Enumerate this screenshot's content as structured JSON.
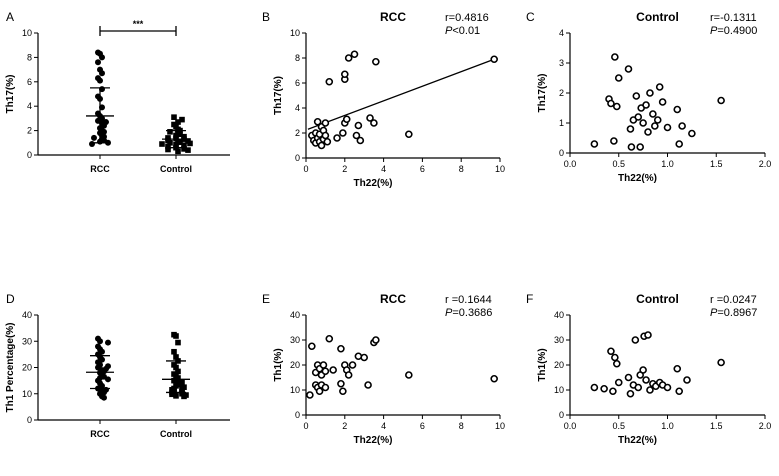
{
  "chart_data": [
    {
      "id": "A",
      "type": "scatter",
      "panel_letter": "A",
      "title": "",
      "ylabel": "Th17(%)",
      "xlabel": "",
      "ylim": [
        0,
        10
      ],
      "yticks": [
        0,
        2,
        4,
        6,
        8,
        10
      ],
      "categories": [
        "RCC",
        "Control"
      ],
      "significance": "***",
      "groups": [
        {
          "name": "RCC",
          "marker": "circle",
          "values": [
            8.4,
            8.3,
            8.0,
            7.6,
            7.0,
            6.7,
            6.3,
            6.1,
            5.4,
            4.8,
            4.6,
            3.9,
            3.4,
            3.2,
            3.0,
            2.8,
            2.7,
            2.6,
            2.4,
            2.2,
            2.0,
            1.9,
            1.8,
            1.6,
            1.5,
            1.4,
            1.3,
            1.2,
            1.1,
            1.0,
            0.9
          ],
          "mean": 3.2,
          "sd_upper": 5.5,
          "sd_lower": 1.0
        },
        {
          "name": "Control",
          "marker": "square",
          "values": [
            3.1,
            2.9,
            2.7,
            2.5,
            2.3,
            2.1,
            2.0,
            1.9,
            1.8,
            1.7,
            1.6,
            1.5,
            1.4,
            1.35,
            1.3,
            1.2,
            1.15,
            1.1,
            1.05,
            1.0,
            0.95,
            0.9,
            0.85,
            0.8,
            0.7,
            0.6,
            0.5,
            0.45,
            0.4,
            0.3
          ],
          "mean": 1.3,
          "sd_upper": 2.0,
          "sd_lower": 0.6
        }
      ]
    },
    {
      "id": "B",
      "type": "scatter",
      "panel_letter": "B",
      "title": "RCC",
      "stat_r": "r=0.4816",
      "stat_p_label": "P",
      "stat_p_value": "<0.01",
      "ylabel": "Th17(%)",
      "xlabel": "Th22(%)",
      "xlim": [
        0,
        10
      ],
      "ylim": [
        0,
        10
      ],
      "xticks": [
        0,
        2,
        4,
        6,
        8,
        10
      ],
      "yticks": [
        0,
        2,
        4,
        6,
        8,
        10
      ],
      "regression": {
        "x": [
          0.1,
          9.7
        ],
        "y": [
          2.3,
          7.9
        ]
      },
      "points": [
        [
          0.3,
          1.8
        ],
        [
          0.4,
          1.4
        ],
        [
          0.5,
          2.0
        ],
        [
          0.5,
          1.2
        ],
        [
          0.6,
          2.9
        ],
        [
          0.6,
          1.6
        ],
        [
          0.7,
          1.9
        ],
        [
          0.7,
          1.3
        ],
        [
          0.8,
          2.5
        ],
        [
          0.8,
          1.0
        ],
        [
          0.9,
          2.2
        ],
        [
          0.9,
          1.5
        ],
        [
          1.0,
          2.8
        ],
        [
          1.0,
          1.8
        ],
        [
          1.1,
          1.3
        ],
        [
          1.2,
          6.1
        ],
        [
          1.6,
          1.6
        ],
        [
          1.9,
          2.0
        ],
        [
          2.0,
          2.8
        ],
        [
          2.0,
          6.3
        ],
        [
          2.0,
          6.7
        ],
        [
          2.1,
          3.1
        ],
        [
          2.2,
          8.0
        ],
        [
          2.5,
          8.3
        ],
        [
          2.6,
          1.8
        ],
        [
          2.7,
          2.6
        ],
        [
          2.8,
          1.4
        ],
        [
          3.3,
          3.2
        ],
        [
          3.5,
          2.8
        ],
        [
          3.6,
          7.7
        ],
        [
          5.3,
          1.9
        ],
        [
          9.7,
          7.9
        ]
      ]
    },
    {
      "id": "C",
      "type": "scatter",
      "panel_letter": "C",
      "title": "Control",
      "stat_r": "r=-0.1311",
      "stat_p_label": "P",
      "stat_p_value": "=0.4900",
      "ylabel": "Th17(%)",
      "xlabel": "Th22(%)",
      "xlim": [
        0,
        2.0
      ],
      "ylim": [
        0,
        4
      ],
      "xticks": [
        0.0,
        0.5,
        1.0,
        1.5,
        2.0
      ],
      "yticks": [
        0,
        1,
        2,
        3,
        4
      ],
      "points": [
        [
          0.25,
          0.3
        ],
        [
          0.4,
          1.8
        ],
        [
          0.42,
          1.65
        ],
        [
          0.45,
          0.4
        ],
        [
          0.46,
          3.2
        ],
        [
          0.48,
          1.55
        ],
        [
          0.5,
          2.5
        ],
        [
          0.6,
          2.8
        ],
        [
          0.62,
          0.8
        ],
        [
          0.63,
          0.2
        ],
        [
          0.65,
          1.1
        ],
        [
          0.68,
          1.9
        ],
        [
          0.7,
          1.2
        ],
        [
          0.72,
          0.2
        ],
        [
          0.73,
          1.5
        ],
        [
          0.75,
          1.0
        ],
        [
          0.78,
          1.6
        ],
        [
          0.8,
          0.7
        ],
        [
          0.82,
          2.0
        ],
        [
          0.85,
          1.3
        ],
        [
          0.87,
          0.9
        ],
        [
          0.9,
          1.1
        ],
        [
          0.92,
          2.2
        ],
        [
          0.95,
          1.7
        ],
        [
          1.0,
          0.85
        ],
        [
          1.1,
          1.45
        ],
        [
          1.12,
          0.3
        ],
        [
          1.15,
          0.9
        ],
        [
          1.25,
          0.65
        ],
        [
          1.55,
          1.75
        ]
      ]
    },
    {
      "id": "D",
      "type": "scatter",
      "panel_letter": "D",
      "title": "",
      "ylabel": "Th1 Percentage(%)",
      "xlabel": "",
      "ylim": [
        0,
        40
      ],
      "yticks": [
        0,
        10,
        20,
        30,
        40
      ],
      "categories": [
        "RCC",
        "Control"
      ],
      "groups": [
        {
          "name": "RCC",
          "marker": "circle",
          "values": [
            31,
            30,
            29.5,
            28,
            27,
            26,
            25,
            24,
            23,
            22,
            21,
            20.5,
            20,
            19.5,
            19,
            18.5,
            18,
            17,
            16.5,
            16,
            15.5,
            15,
            14,
            13,
            12,
            11.5,
            11,
            10.5,
            10,
            9,
            8.5
          ],
          "mean": 18.2,
          "sd_upper": 24.5,
          "sd_lower": 12.0
        },
        {
          "name": "Control",
          "marker": "square",
          "values": [
            32.5,
            32,
            29.5,
            26,
            24,
            22.5,
            21,
            20,
            18.5,
            17.5,
            16.5,
            16,
            15,
            14.5,
            14,
            13.5,
            13,
            12.5,
            12,
            11.8,
            11.5,
            11,
            10.8,
            10.5,
            10.2,
            10,
            9.8,
            9.5,
            9.2,
            9
          ],
          "mean": 15.5,
          "sd_upper": 22.5,
          "sd_lower": 10.5
        }
      ]
    },
    {
      "id": "E",
      "type": "scatter",
      "panel_letter": "E",
      "title": "RCC",
      "stat_r": "r =0.1644",
      "stat_p_label": "P",
      "stat_p_value": "=0.3686",
      "ylabel": "Th1(%)",
      "xlabel": "Th22(%)",
      "xlim": [
        0,
        10
      ],
      "ylim": [
        0,
        40
      ],
      "xticks": [
        0,
        2,
        4,
        6,
        8,
        10
      ],
      "yticks": [
        0,
        10,
        20,
        30,
        40
      ],
      "points": [
        [
          0.2,
          8
        ],
        [
          0.3,
          27.5
        ],
        [
          0.5,
          17
        ],
        [
          0.5,
          12
        ],
        [
          0.6,
          20
        ],
        [
          0.6,
          11
        ],
        [
          0.7,
          18.5
        ],
        [
          0.7,
          9.5
        ],
        [
          0.8,
          12
        ],
        [
          0.8,
          16
        ],
        [
          0.9,
          20
        ],
        [
          1.0,
          17.5
        ],
        [
          1.0,
          11
        ],
        [
          1.2,
          30.5
        ],
        [
          1.4,
          18
        ],
        [
          1.8,
          26.5
        ],
        [
          1.8,
          12.5
        ],
        [
          1.9,
          9.5
        ],
        [
          2.0,
          20
        ],
        [
          2.1,
          18
        ],
        [
          2.2,
          16
        ],
        [
          2.4,
          20
        ],
        [
          2.7,
          23.5
        ],
        [
          3.0,
          23
        ],
        [
          3.2,
          12
        ],
        [
          3.5,
          29
        ],
        [
          3.6,
          30
        ],
        [
          5.3,
          16
        ],
        [
          9.7,
          14.5
        ]
      ]
    },
    {
      "id": "F",
      "type": "scatter",
      "panel_letter": "F",
      "title": "Control",
      "stat_r": "r =0.0247",
      "stat_p_label": "P",
      "stat_p_value": "=0.8967",
      "ylabel": "Th1(%)",
      "xlabel": "Th22(%)",
      "xlim": [
        0,
        2.0
      ],
      "ylim": [
        0,
        40
      ],
      "xticks": [
        0.0,
        0.5,
        1.0,
        1.5,
        2.0
      ],
      "yticks": [
        0,
        10,
        20,
        30,
        40
      ],
      "points": [
        [
          0.25,
          11
        ],
        [
          0.35,
          10.5
        ],
        [
          0.42,
          25.5
        ],
        [
          0.44,
          9.5
        ],
        [
          0.46,
          23
        ],
        [
          0.48,
          20.5
        ],
        [
          0.5,
          13
        ],
        [
          0.6,
          15
        ],
        [
          0.62,
          8.5
        ],
        [
          0.65,
          12
        ],
        [
          0.67,
          30
        ],
        [
          0.7,
          11
        ],
        [
          0.72,
          16
        ],
        [
          0.75,
          18
        ],
        [
          0.76,
          31.5
        ],
        [
          0.78,
          14
        ],
        [
          0.8,
          32
        ],
        [
          0.82,
          10
        ],
        [
          0.85,
          12.5
        ],
        [
          0.88,
          11.5
        ],
        [
          0.92,
          13
        ],
        [
          0.95,
          12
        ],
        [
          1.0,
          11
        ],
        [
          1.1,
          18.5
        ],
        [
          1.12,
          9.5
        ],
        [
          1.2,
          14
        ],
        [
          1.55,
          21
        ]
      ]
    }
  ]
}
